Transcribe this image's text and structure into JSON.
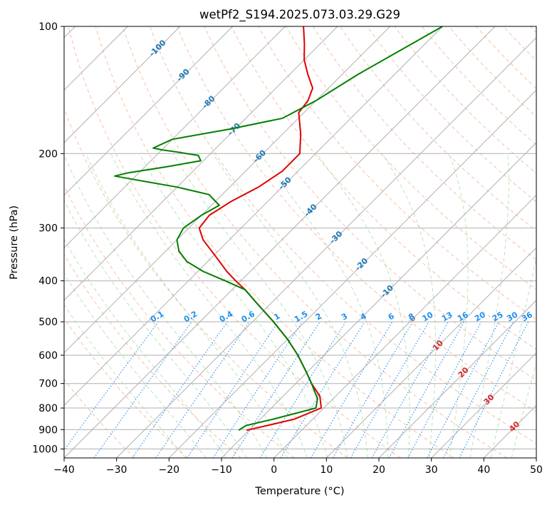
{
  "chart_data": {
    "type": "skew-t",
    "title": "wetPf2_S194.2025.073.03.29.G29",
    "xlabel": "Temperature (°C)",
    "ylabel": "Pressure (hPa)",
    "xlim": [
      -40,
      50
    ],
    "ylim": [
      1050,
      100
    ],
    "y_scale": "log",
    "x_ticks": [
      -40,
      -30,
      -20,
      -10,
      0,
      10,
      20,
      30,
      40,
      50
    ],
    "y_ticks": [
      100,
      200,
      300,
      400,
      500,
      600,
      700,
      800,
      900,
      1000
    ],
    "grid": true,
    "colors": {
      "temperature": "#e00000",
      "dewpoint": "#008000",
      "isotherm": "#b0b0b0",
      "dry_adiabat": "#f4a582",
      "moist_adiabat": "#8fcf8f",
      "mixing_ratio": "#1f8ef0",
      "isotherm_label_cold": "#1f77b4",
      "isotherm_label_warm": "#d62728",
      "isotherm_label_zero": "#808080"
    },
    "isotherm_labels": [
      -100,
      -90,
      -80,
      -70,
      -60,
      -50,
      -40,
      -30,
      -20,
      -10,
      0,
      10,
      20,
      30,
      40
    ],
    "mixing_ratio_labels": [
      "0.1",
      "0.2",
      "0.4",
      "0.6",
      "1",
      "1.5",
      "2",
      "3",
      "4",
      "6",
      "8",
      "10",
      "13",
      "16",
      "20",
      "25",
      "30",
      "36"
    ],
    "series": [
      {
        "name": "Temperature",
        "pressure": [
          903,
          880,
          850,
          800,
          750,
          700,
          660,
          600,
          550,
          500,
          450,
          420,
          400,
          380,
          350,
          320,
          300,
          280,
          260,
          240,
          220,
          200,
          180,
          160,
          150,
          140,
          130,
          120,
          110,
          100
        ],
        "temperature": [
          -10.5,
          -7.5,
          -3.5,
          -0.5,
          -3.0,
          -7.0,
          -10.0,
          -15.0,
          -20.0,
          -26.0,
          -33.0,
          -37.5,
          -41.0,
          -44.5,
          -49.5,
          -55.0,
          -58.0,
          -58.5,
          -57.0,
          -54.5,
          -53.0,
          -53.0,
          -56.5,
          -61.0,
          -61.5,
          -63.0,
          -66.5,
          -70.0,
          -73.0,
          -76.5
        ]
      },
      {
        "name": "Dewpoint",
        "pressure": [
          903,
          880,
          850,
          800,
          760,
          700,
          660,
          600,
          550,
          500,
          450,
          420,
          400,
          380,
          360,
          340,
          320,
          300,
          280,
          265,
          250,
          240,
          230,
          226,
          222,
          215,
          208,
          202,
          198,
          196,
          194,
          185,
          175,
          165,
          150,
          130,
          100
        ],
        "temperature": [
          -12.0,
          -11.5,
          -7.5,
          -1.5,
          -3.0,
          -7.0,
          -10.0,
          -15.0,
          -20.0,
          -26.0,
          -33.0,
          -37.5,
          -43.0,
          -49.0,
          -54.0,
          -57.5,
          -60.0,
          -61.0,
          -60.0,
          -58.5,
          -62.5,
          -70.0,
          -80.0,
          -84.0,
          -82.0,
          -76.0,
          -70.5,
          -72.0,
          -77.0,
          -80.0,
          -82.0,
          -80.0,
          -71.0,
          -63.0,
          -60.0,
          -57.0,
          -50.0
        ]
      }
    ]
  }
}
